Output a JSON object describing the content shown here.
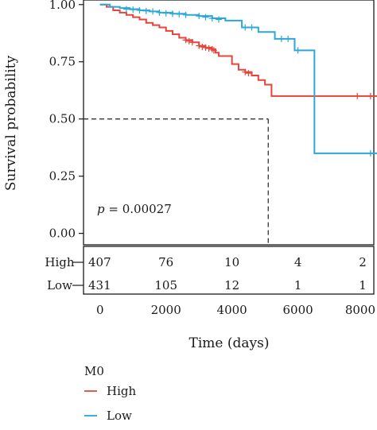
{
  "chart_data": {
    "type": "line",
    "subtype": "kaplan-meier",
    "ylabel": "Survival probability",
    "xlabel": "Time (days)",
    "xlim": [
      -500,
      8300
    ],
    "ylim": [
      -0.05,
      1.02
    ],
    "x_ticks": [
      0,
      2000,
      4000,
      6000,
      8000
    ],
    "x_tick_labels": [
      "0",
      "2000",
      "4000",
      "6000",
      "8000"
    ],
    "y_ticks": [
      0.0,
      0.25,
      0.5,
      0.75,
      1.0
    ],
    "y_tick_labels": [
      "0.00",
      "0.25",
      "0.50",
      "0.75",
      "1.00"
    ],
    "p_value_label": "p = 0.00027",
    "p_value_prefix": "p",
    "p_value_rest": " = 0.00027",
    "median_reference": {
      "y": 0.5,
      "x": 5100,
      "style": "dashed"
    },
    "series": [
      {
        "name": "High",
        "color": "#e8443a",
        "steps": [
          [
            0,
            1.0
          ],
          [
            200,
            0.99
          ],
          [
            400,
            0.975
          ],
          [
            600,
            0.965
          ],
          [
            800,
            0.955
          ],
          [
            1000,
            0.945
          ],
          [
            1200,
            0.935
          ],
          [
            1400,
            0.92
          ],
          [
            1600,
            0.91
          ],
          [
            1800,
            0.9
          ],
          [
            2000,
            0.885
          ],
          [
            2200,
            0.87
          ],
          [
            2400,
            0.855
          ],
          [
            2600,
            0.845
          ],
          [
            2800,
            0.835
          ],
          [
            3000,
            0.82
          ],
          [
            3200,
            0.812
          ],
          [
            3400,
            0.805
          ],
          [
            3500,
            0.79
          ],
          [
            3600,
            0.775
          ],
          [
            4000,
            0.74
          ],
          [
            4200,
            0.715
          ],
          [
            4400,
            0.705
          ],
          [
            4600,
            0.69
          ],
          [
            4800,
            0.67
          ],
          [
            5000,
            0.65
          ],
          [
            5200,
            0.6
          ],
          [
            8400,
            0.6
          ]
        ],
        "censors": [
          [
            2600,
            0.845
          ],
          [
            2700,
            0.84
          ],
          [
            2800,
            0.835
          ],
          [
            3000,
            0.82
          ],
          [
            3100,
            0.815
          ],
          [
            3200,
            0.812
          ],
          [
            3300,
            0.808
          ],
          [
            3400,
            0.805
          ],
          [
            3450,
            0.8
          ],
          [
            4400,
            0.705
          ],
          [
            4500,
            0.7
          ],
          [
            7800,
            0.6
          ],
          [
            8200,
            0.6
          ]
        ]
      },
      {
        "name": "Low",
        "color": "#2aa8d8",
        "steps": [
          [
            0,
            1.0
          ],
          [
            300,
            0.99
          ],
          [
            600,
            0.985
          ],
          [
            900,
            0.98
          ],
          [
            1200,
            0.975
          ],
          [
            1500,
            0.97
          ],
          [
            1800,
            0.965
          ],
          [
            2200,
            0.96
          ],
          [
            2600,
            0.955
          ],
          [
            3000,
            0.95
          ],
          [
            3400,
            0.94
          ],
          [
            3800,
            0.93
          ],
          [
            4300,
            0.9
          ],
          [
            4800,
            0.88
          ],
          [
            5300,
            0.85
          ],
          [
            5900,
            0.8
          ],
          [
            6500,
            0.35
          ],
          [
            8400,
            0.35
          ]
        ],
        "censors": [
          [
            800,
            0.98
          ],
          [
            1000,
            0.978
          ],
          [
            1200,
            0.975
          ],
          [
            1400,
            0.972
          ],
          [
            1600,
            0.97
          ],
          [
            1800,
            0.965
          ],
          [
            2000,
            0.962
          ],
          [
            2200,
            0.96
          ],
          [
            2400,
            0.958
          ],
          [
            2600,
            0.955
          ],
          [
            3000,
            0.95
          ],
          [
            3200,
            0.945
          ],
          [
            3400,
            0.94
          ],
          [
            3600,
            0.935
          ],
          [
            4400,
            0.9
          ],
          [
            4600,
            0.9
          ],
          [
            5500,
            0.85
          ],
          [
            5700,
            0.85
          ],
          [
            6000,
            0.8
          ],
          [
            8200,
            0.35
          ]
        ]
      }
    ]
  },
  "risk_table": {
    "rows": [
      {
        "label": "High",
        "counts": [
          "407",
          "76",
          "10",
          "4",
          "2"
        ]
      },
      {
        "label": "Low",
        "counts": [
          "431",
          "105",
          "12",
          "1",
          "1"
        ]
      }
    ]
  },
  "legend": {
    "title": "M0",
    "items": [
      {
        "label": "High",
        "color": "#e8443a"
      },
      {
        "label": "Low",
        "color": "#2aa8d8"
      }
    ]
  }
}
